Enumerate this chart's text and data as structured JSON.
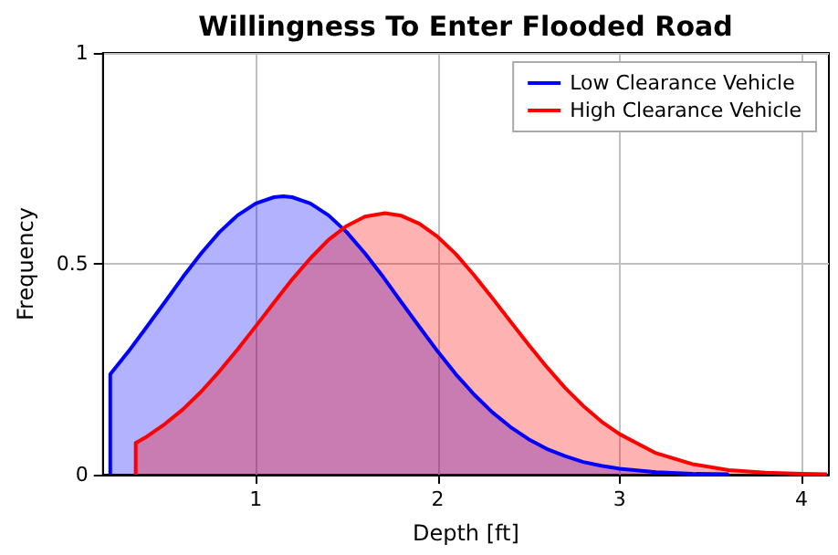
{
  "chart_data": {
    "type": "area",
    "title": "Willingness To Enter Flooded Road",
    "xlabel": "Depth [ft]",
    "ylabel": "Frequency",
    "series": [
      {
        "name": "Low Clearance Vehicle",
        "color": "#0000ff",
        "x": [
          0.2,
          0.2,
          0.3,
          0.4,
          0.5,
          0.6,
          0.7,
          0.8,
          0.9,
          1.0,
          1.1,
          1.15,
          1.2,
          1.3,
          1.4,
          1.5,
          1.6,
          1.7,
          1.8,
          1.9,
          2.0,
          2.1,
          2.2,
          2.3,
          2.4,
          2.5,
          2.6,
          2.7,
          2.8,
          2.9,
          3.0,
          3.2,
          3.4,
          3.6
        ],
        "values": [
          0,
          0.238,
          0.292,
          0.35,
          0.409,
          0.469,
          0.525,
          0.575,
          0.615,
          0.643,
          0.658,
          0.66,
          0.658,
          0.643,
          0.615,
          0.575,
          0.525,
          0.469,
          0.409,
          0.35,
          0.292,
          0.238,
          0.19,
          0.148,
          0.113,
          0.084,
          0.061,
          0.044,
          0.03,
          0.021,
          0.014,
          0.006,
          0.002,
          0.001
        ]
      },
      {
        "name": "High Clearance Vehicle",
        "color": "#ff0000",
        "x": [
          0.34,
          0.34,
          0.4,
          0.5,
          0.6,
          0.7,
          0.8,
          0.9,
          1.0,
          1.1,
          1.2,
          1.3,
          1.4,
          1.5,
          1.6,
          1.71,
          1.8,
          1.9,
          2.0,
          2.1,
          2.2,
          2.3,
          2.4,
          2.5,
          2.6,
          2.7,
          2.8,
          2.9,
          3.0,
          3.2,
          3.4,
          3.6,
          3.8,
          4.0,
          4.14
        ],
        "values": [
          0,
          0.075,
          0.09,
          0.12,
          0.155,
          0.197,
          0.245,
          0.297,
          0.352,
          0.408,
          0.463,
          0.513,
          0.557,
          0.59,
          0.612,
          0.62,
          0.614,
          0.595,
          0.564,
          0.523,
          0.473,
          0.419,
          0.363,
          0.308,
          0.255,
          0.206,
          0.163,
          0.126,
          0.096,
          0.051,
          0.025,
          0.011,
          0.005,
          0.002,
          0.001
        ]
      }
    ],
    "xlim": [
      0.16,
      4.15
    ],
    "xticks": [
      1,
      2,
      3,
      4
    ],
    "ylim": [
      0,
      1
    ],
    "yticks": [
      0,
      0.5,
      1
    ],
    "grid": true,
    "legend": "top right",
    "marker": "none",
    "line_style": "solid"
  }
}
